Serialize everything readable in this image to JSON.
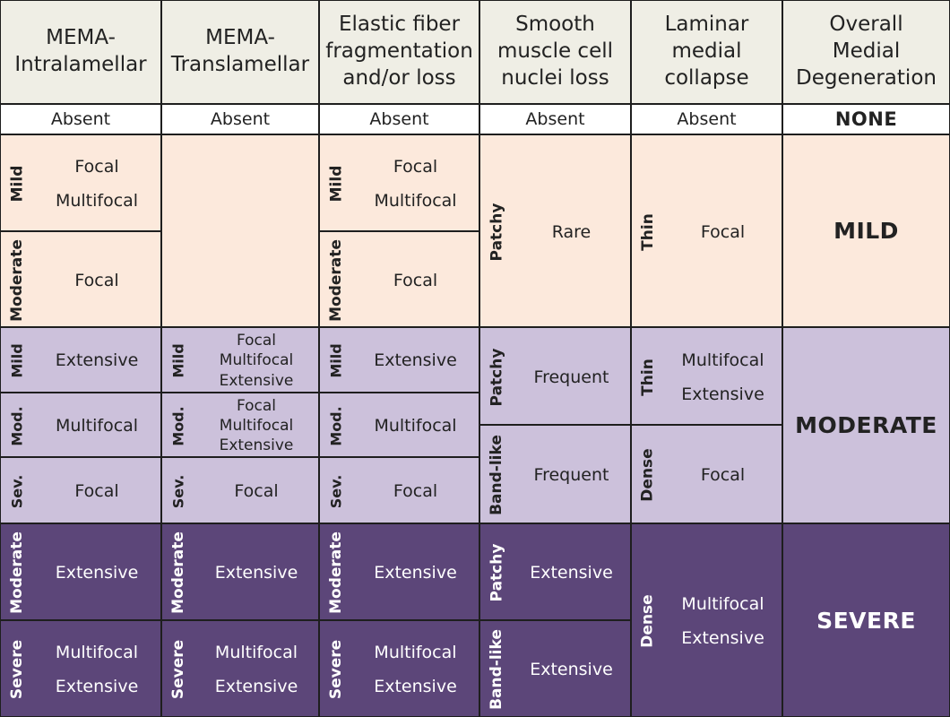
{
  "colors": {
    "header_bg": "#efeee5",
    "absent_bg": "#ffffff",
    "mild_bg": "#fce9dc",
    "moderate_bg": "#ccc1db",
    "severe_bg": "#5c4679",
    "border": "#1e1e1e",
    "dark_text": "#222222",
    "light_text": "#ffffff"
  },
  "headers": [
    "MEMA-\nIntralamellar",
    "MEMA-\nTranslamellar",
    "Elastic fiber\nfragmentation\nand/or loss",
    "Smooth\nmuscle cell\nnuclei loss",
    "Laminar\nmedial\ncollapse",
    "Overall\nMedial\nDegeneration"
  ],
  "absent_row": [
    "Absent",
    "Absent",
    "Absent",
    "Absent",
    "Absent",
    "NONE"
  ],
  "mild_band": {
    "intralamellar": [
      {
        "grade": "Mild",
        "extent": "Focal\nMultifocal"
      },
      {
        "grade": "Moderate",
        "extent": "Focal"
      }
    ],
    "translamellar": [],
    "elastic": [
      {
        "grade": "Mild",
        "extent": "Focal\nMultifocal"
      },
      {
        "grade": "Moderate",
        "extent": "Focal"
      }
    ],
    "smooth_muscle": [
      {
        "pattern": "Patchy",
        "extent": "Rare"
      }
    ],
    "laminar": [
      {
        "pattern": "Thin",
        "extent": "Focal"
      }
    ],
    "overall": "MILD"
  },
  "moderate_band": {
    "intralamellar": [
      {
        "grade": "Mild",
        "extent": "Extensive"
      },
      {
        "grade": "Mod.",
        "extent": "Multifocal"
      },
      {
        "grade": "Sev.",
        "extent": "Focal"
      }
    ],
    "translamellar": [
      {
        "grade": "Mild",
        "extent": "Focal\nMultifocal\nExtensive"
      },
      {
        "grade": "Mod.",
        "extent": "Focal\nMultifocal\nExtensive"
      },
      {
        "grade": "Sev.",
        "extent": "Focal"
      }
    ],
    "elastic": [
      {
        "grade": "Mild",
        "extent": "Extensive"
      },
      {
        "grade": "Mod.",
        "extent": "Multifocal"
      },
      {
        "grade": "Sev.",
        "extent": "Focal"
      }
    ],
    "smooth_muscle": [
      {
        "pattern": "Patchy",
        "extent": "Frequent"
      },
      {
        "pattern": "Band-like",
        "extent": "Frequent"
      }
    ],
    "laminar": [
      {
        "pattern": "Thin",
        "extent": "Multifocal\nExtensive"
      },
      {
        "pattern": "Dense",
        "extent": "Focal"
      }
    ],
    "overall": "MODERATE"
  },
  "severe_band": {
    "intralamellar": [
      {
        "grade": "Moderate",
        "extent": "Extensive"
      },
      {
        "grade": "Severe",
        "extent": "Multifocal\nExtensive"
      }
    ],
    "translamellar": [
      {
        "grade": "Moderate",
        "extent": "Extensive"
      },
      {
        "grade": "Severe",
        "extent": "Multifocal\nExtensive"
      }
    ],
    "elastic": [
      {
        "grade": "Moderate",
        "extent": "Extensive"
      },
      {
        "grade": "Severe",
        "extent": "Multifocal\nExtensive"
      }
    ],
    "smooth_muscle": [
      {
        "pattern": "Patchy",
        "extent": "Extensive"
      },
      {
        "pattern": "Band-like",
        "extent": "Extensive"
      }
    ],
    "laminar": [
      {
        "pattern": "Dense",
        "extent": "Multifocal\nExtensive"
      }
    ],
    "overall": "SEVERE"
  }
}
